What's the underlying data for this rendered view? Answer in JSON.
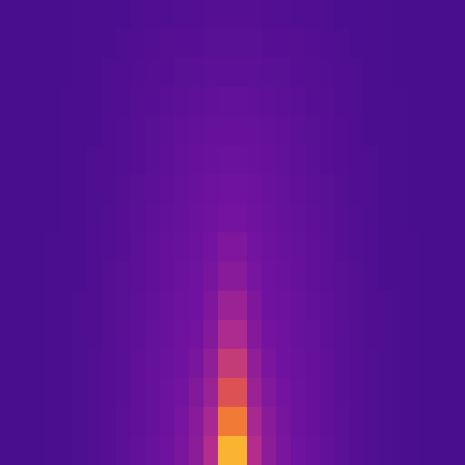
{
  "chart_data": {
    "type": "heatmap",
    "tick_labels": false,
    "zlim": [
      0,
      1
    ],
    "cells": [
      [
        0.1,
        0.1,
        0.1,
        0.1,
        0.1,
        0.11,
        0.11,
        0.12,
        0.12,
        0.13,
        0.14,
        0.14,
        0.15,
        0.15,
        0.16,
        0.16,
        0.16,
        0.16,
        0.15,
        0.15,
        0.14,
        0.14,
        0.13,
        0.12,
        0.12,
        0.11,
        0.11,
        0.1,
        0.1,
        0.1,
        0.1,
        0.1
      ],
      [
        0.1,
        0.1,
        0.1,
        0.1,
        0.1,
        0.11,
        0.11,
        0.12,
        0.13,
        0.14,
        0.15,
        0.16,
        0.17,
        0.17,
        0.18,
        0.18,
        0.18,
        0.18,
        0.17,
        0.17,
        0.16,
        0.15,
        0.14,
        0.13,
        0.12,
        0.11,
        0.11,
        0.1,
        0.1,
        0.1,
        0.1,
        0.1
      ],
      [
        0.1,
        0.1,
        0.1,
        0.1,
        0.1,
        0.11,
        0.12,
        0.13,
        0.14,
        0.15,
        0.16,
        0.17,
        0.18,
        0.19,
        0.2,
        0.2,
        0.2,
        0.2,
        0.19,
        0.18,
        0.17,
        0.16,
        0.15,
        0.14,
        0.13,
        0.12,
        0.11,
        0.1,
        0.1,
        0.1,
        0.1,
        0.1
      ],
      [
        0.1,
        0.1,
        0.1,
        0.1,
        0.11,
        0.11,
        0.12,
        0.13,
        0.14,
        0.16,
        0.17,
        0.19,
        0.2,
        0.21,
        0.22,
        0.23,
        0.23,
        0.22,
        0.21,
        0.2,
        0.19,
        0.17,
        0.16,
        0.14,
        0.13,
        0.12,
        0.11,
        0.11,
        0.1,
        0.1,
        0.1,
        0.1
      ],
      [
        0.1,
        0.1,
        0.1,
        0.1,
        0.11,
        0.11,
        0.12,
        0.14,
        0.15,
        0.17,
        0.18,
        0.2,
        0.22,
        0.23,
        0.24,
        0.25,
        0.25,
        0.24,
        0.23,
        0.22,
        0.2,
        0.18,
        0.17,
        0.15,
        0.14,
        0.12,
        0.11,
        0.11,
        0.1,
        0.1,
        0.1,
        0.1
      ],
      [
        0.1,
        0.1,
        0.1,
        0.1,
        0.11,
        0.12,
        0.13,
        0.14,
        0.15,
        0.17,
        0.19,
        0.21,
        0.23,
        0.25,
        0.26,
        0.27,
        0.27,
        0.26,
        0.25,
        0.23,
        0.21,
        0.19,
        0.17,
        0.15,
        0.14,
        0.13,
        0.12,
        0.11,
        0.1,
        0.1,
        0.1,
        0.1
      ],
      [
        0.1,
        0.1,
        0.1,
        0.1,
        0.11,
        0.12,
        0.13,
        0.14,
        0.16,
        0.18,
        0.2,
        0.22,
        0.24,
        0.26,
        0.28,
        0.29,
        0.29,
        0.28,
        0.26,
        0.24,
        0.22,
        0.2,
        0.18,
        0.16,
        0.14,
        0.13,
        0.12,
        0.11,
        0.1,
        0.1,
        0.1,
        0.1
      ],
      [
        0.1,
        0.1,
        0.1,
        0.1,
        0.11,
        0.12,
        0.13,
        0.15,
        0.17,
        0.19,
        0.21,
        0.23,
        0.25,
        0.27,
        0.29,
        0.31,
        0.31,
        0.29,
        0.27,
        0.25,
        0.23,
        0.21,
        0.19,
        0.17,
        0.15,
        0.13,
        0.12,
        0.11,
        0.1,
        0.1,
        0.1,
        0.1
      ],
      [
        0.1,
        0.1,
        0.1,
        0.11,
        0.11,
        0.12,
        0.14,
        0.15,
        0.17,
        0.2,
        0.22,
        0.24,
        0.26,
        0.28,
        0.31,
        0.34,
        0.34,
        0.31,
        0.28,
        0.26,
        0.24,
        0.22,
        0.2,
        0.17,
        0.15,
        0.14,
        0.12,
        0.11,
        0.11,
        0.1,
        0.1,
        0.1
      ],
      [
        0.1,
        0.1,
        0.1,
        0.11,
        0.11,
        0.12,
        0.14,
        0.16,
        0.18,
        0.2,
        0.22,
        0.25,
        0.27,
        0.29,
        0.32,
        0.37,
        0.37,
        0.32,
        0.29,
        0.27,
        0.25,
        0.22,
        0.2,
        0.18,
        0.16,
        0.14,
        0.12,
        0.11,
        0.11,
        0.1,
        0.1,
        0.1
      ],
      [
        0.1,
        0.1,
        0.1,
        0.11,
        0.12,
        0.13,
        0.14,
        0.16,
        0.18,
        0.21,
        0.23,
        0.26,
        0.28,
        0.3,
        0.34,
        0.42,
        0.42,
        0.34,
        0.3,
        0.28,
        0.26,
        0.23,
        0.21,
        0.18,
        0.16,
        0.14,
        0.13,
        0.12,
        0.11,
        0.1,
        0.1,
        0.1
      ],
      [
        0.1,
        0.1,
        0.1,
        0.11,
        0.12,
        0.13,
        0.14,
        0.16,
        0.19,
        0.21,
        0.24,
        0.26,
        0.29,
        0.31,
        0.36,
        0.48,
        0.48,
        0.36,
        0.31,
        0.29,
        0.26,
        0.24,
        0.21,
        0.19,
        0.16,
        0.14,
        0.13,
        0.12,
        0.11,
        0.1,
        0.1,
        0.1
      ],
      [
        0.1,
        0.1,
        0.1,
        0.11,
        0.12,
        0.13,
        0.15,
        0.17,
        0.19,
        0.22,
        0.24,
        0.27,
        0.3,
        0.33,
        0.39,
        0.56,
        0.56,
        0.39,
        0.33,
        0.3,
        0.27,
        0.24,
        0.22,
        0.19,
        0.17,
        0.15,
        0.13,
        0.12,
        0.11,
        0.1,
        0.1,
        0.1
      ],
      [
        0.1,
        0.1,
        0.1,
        0.11,
        0.12,
        0.13,
        0.15,
        0.17,
        0.19,
        0.22,
        0.25,
        0.28,
        0.31,
        0.35,
        0.42,
        0.66,
        0.66,
        0.42,
        0.35,
        0.31,
        0.28,
        0.25,
        0.22,
        0.19,
        0.17,
        0.15,
        0.13,
        0.12,
        0.11,
        0.1,
        0.1,
        0.1
      ],
      [
        0.1,
        0.1,
        0.1,
        0.11,
        0.12,
        0.13,
        0.15,
        0.17,
        0.2,
        0.22,
        0.25,
        0.28,
        0.32,
        0.37,
        0.46,
        0.78,
        0.78,
        0.46,
        0.37,
        0.32,
        0.28,
        0.25,
        0.22,
        0.2,
        0.17,
        0.15,
        0.13,
        0.12,
        0.11,
        0.1,
        0.1,
        0.1
      ],
      [
        0.1,
        0.1,
        0.1,
        0.11,
        0.12,
        0.13,
        0.15,
        0.17,
        0.2,
        0.23,
        0.26,
        0.29,
        0.33,
        0.38,
        0.5,
        0.92,
        0.92,
        0.5,
        0.38,
        0.33,
        0.29,
        0.26,
        0.23,
        0.2,
        0.17,
        0.15,
        0.13,
        0.12,
        0.11,
        0.1,
        0.1,
        0.1
      ]
    ]
  }
}
